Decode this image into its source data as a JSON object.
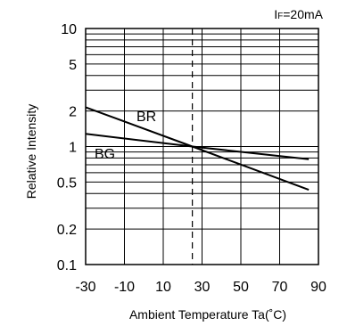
{
  "chart_data": {
    "type": "line",
    "condition_prefix": "I",
    "condition_sub": "F",
    "condition_rest": "=20mA",
    "xlabel": "Ambient Temperature  Ta(˚C)",
    "ylabel": "Relative Intensity",
    "xlim": [
      -30,
      90
    ],
    "ylim": [
      0.1,
      10
    ],
    "yscale": "log",
    "grid": true,
    "x_ticks": [
      -30,
      -10,
      10,
      30,
      50,
      70,
      90
    ],
    "x_tick_labels": [
      "-30",
      "-10",
      "10",
      "30",
      "50",
      "70",
      "90"
    ],
    "y_ticks": [
      10,
      5,
      2,
      1,
      0.5,
      0.2,
      0.1
    ],
    "y_tick_labels": [
      "10",
      "5",
      "2",
      "1",
      "0.5",
      "0.2",
      "0.1"
    ],
    "reference_x": 25,
    "series": [
      {
        "name": "BR",
        "x": [
          -30,
          25,
          85
        ],
        "y": [
          2.15,
          1.0,
          0.43
        ]
      },
      {
        "name": "BG",
        "x": [
          -30,
          25,
          85
        ],
        "y": [
          1.28,
          1.0,
          0.78
        ]
      }
    ]
  }
}
